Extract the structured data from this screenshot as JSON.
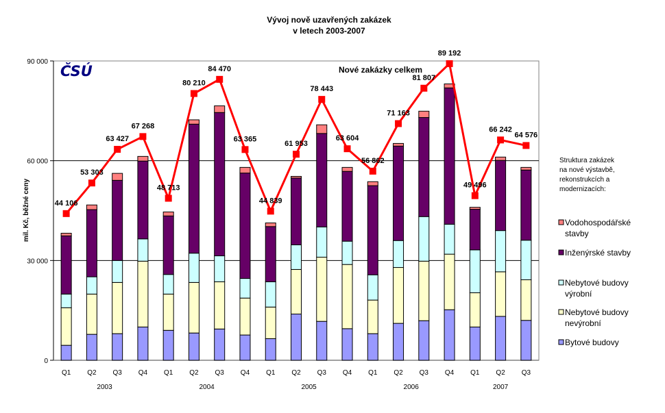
{
  "chart_data": {
    "type": "bar",
    "subtype": "stacked-bar-with-line",
    "title": [
      "Vývoj nově uzavřených zakázek",
      "v letech 2003-2007"
    ],
    "ylabel": "mil. Kč, běžné ceny",
    "xlabel": "",
    "ylim": [
      0,
      90000
    ],
    "yticks": [
      0,
      30000,
      60000,
      90000
    ],
    "ytick_labels": [
      "0",
      "30 000",
      "60 000",
      "90 000"
    ],
    "grid": "horizontal major lines",
    "logo": "ČSÚ",
    "categories": [
      "Q1",
      "Q2",
      "Q3",
      "Q4",
      "Q1",
      "Q2",
      "Q3",
      "Q4",
      "Q1",
      "Q2",
      "Q3",
      "Q4",
      "Q1",
      "Q2",
      "Q3",
      "Q4",
      "Q1",
      "Q2",
      "Q3"
    ],
    "year_groups": [
      {
        "label": "2003",
        "count": 4
      },
      {
        "label": "2004",
        "count": 4
      },
      {
        "label": "2005",
        "count": 4
      },
      {
        "label": "2006",
        "count": 4
      },
      {
        "label": "2007",
        "count": 3
      }
    ],
    "series": [
      {
        "name": "Bytové budovy",
        "color": "#9999FF",
        "values": [
          4500,
          7800,
          8000,
          10000,
          9000,
          8200,
          9400,
          7600,
          6500,
          13900,
          11700,
          9500,
          8000,
          11100,
          11900,
          15200,
          10000,
          13200,
          12000
        ]
      },
      {
        "name": "Nebytové budovy nevýrobní",
        "color": "#FFFFCC",
        "values": [
          11300,
          12100,
          15400,
          19800,
          10900,
          15200,
          14200,
          11100,
          9500,
          13400,
          19300,
          19300,
          10100,
          16800,
          17900,
          16700,
          10300,
          13400,
          12200
        ]
      },
      {
        "name": "Nebytové budovy výrobní",
        "color": "#CCFFFF",
        "values": [
          4100,
          5200,
          6600,
          6700,
          5900,
          8800,
          7800,
          5900,
          7600,
          7400,
          9100,
          7000,
          7600,
          8100,
          13400,
          9000,
          12900,
          12400,
          11900
        ]
      },
      {
        "name": "Inženýrské stavby",
        "color": "#660066",
        "values": [
          17500,
          20200,
          24100,
          23400,
          17600,
          38800,
          43100,
          31700,
          16600,
          20100,
          28100,
          21000,
          26800,
          28400,
          29800,
          41000,
          12200,
          21100,
          21100
        ]
      },
      {
        "name": "Vodohospodářské stavby",
        "color": "#FF8080",
        "values": [
          800,
          1400,
          2100,
          1400,
          1200,
          1300,
          2000,
          1700,
          1100,
          500,
          2600,
          1200,
          1200,
          800,
          1900,
          1200,
          600,
          1000,
          800
        ]
      }
    ],
    "line_series": {
      "name": "Nové zakázky celkem",
      "color": "#FF0000",
      "values": [
        44106,
        53303,
        63427,
        67268,
        48713,
        80210,
        84470,
        63365,
        44839,
        61953,
        78443,
        63604,
        56862,
        71163,
        81807,
        89192,
        49496,
        66242,
        64576
      ],
      "labels": [
        "44 106",
        "53 303",
        "63 427",
        "67 268",
        "48 713",
        "80 210",
        "84 470",
        "63 365",
        "44 839",
        "61 953",
        "78 443",
        "63 604",
        "56 862",
        "71 163",
        "81 807",
        "89 192",
        "49 496",
        "66 242",
        "64 576"
      ]
    },
    "legend": {
      "placement": "right",
      "title": [
        "Struktura zakázek",
        "na nové výstavbě,",
        "rekonstrukcích a",
        "modernizacích:"
      ],
      "entries": [
        {
          "lines": [
            "Vodohospodářské",
            "stavby"
          ],
          "series": 4
        },
        {
          "lines": [
            "Inženýrské stavby"
          ],
          "series": 3
        },
        {
          "lines": [
            "Nebytové budovy",
            "výrobní"
          ],
          "series": 2
        },
        {
          "lines": [
            "Nebytové budovy",
            "nevýrobní"
          ],
          "series": 1
        },
        {
          "lines": [
            "Bytové budovy"
          ],
          "series": 0
        }
      ]
    }
  }
}
